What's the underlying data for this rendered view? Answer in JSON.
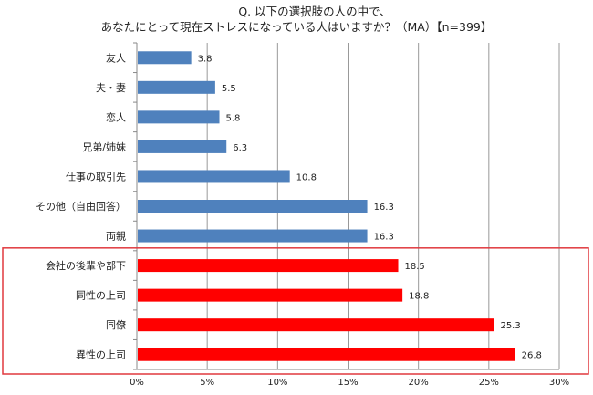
{
  "chart_data": {
    "type": "bar",
    "orientation": "horizontal",
    "title": [
      "Q. 以下の選択肢の人の中で、",
      "あなたにとって現在ストレスになっている人はいますか？（MA）【n=399】"
    ],
    "categories": [
      "友人",
      "夫・妻",
      "恋人",
      "兄弟/姉妹",
      "仕事の取引先",
      "その他（自由回答）",
      "両親",
      "会社の後輩や部下",
      "同性の上司",
      "同僚",
      "異性の上司"
    ],
    "values": [
      3.8,
      5.5,
      5.8,
      6.3,
      10.8,
      16.3,
      16.3,
      18.5,
      18.8,
      25.3,
      26.8
    ],
    "value_labels": [
      "3.8",
      "5.5",
      "5.8",
      "6.3",
      "10.8",
      "16.3",
      "16.3",
      "18.5",
      "18.8",
      "25.3",
      "26.8"
    ],
    "highlighted": [
      false,
      false,
      false,
      false,
      false,
      false,
      false,
      true,
      true,
      true,
      true
    ],
    "xlim": [
      0,
      30
    ],
    "xticks": [
      0,
      5,
      10,
      15,
      20,
      25,
      30
    ],
    "xtick_labels": [
      "0%",
      "5%",
      "10%",
      "15%",
      "20%",
      "25%",
      "30%"
    ],
    "grid": true,
    "xlabel": "",
    "ylabel": "",
    "colors": {
      "normal": "#4F81BD",
      "highlight": "#FF0000",
      "box": "#E0393E"
    }
  }
}
